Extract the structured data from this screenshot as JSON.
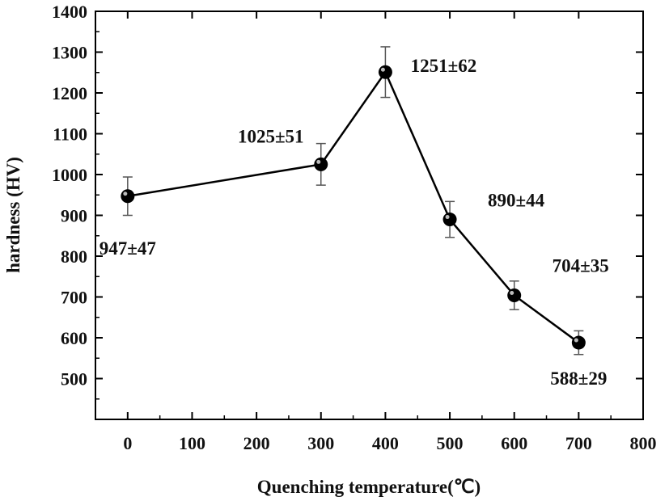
{
  "chart_data": {
    "type": "line",
    "xlabel": "Quenching temperature(℃)",
    "ylabel": "hardness (HV)",
    "xlim": [
      -50,
      800
    ],
    "ylim": [
      400,
      1400
    ],
    "xticks": [
      0,
      100,
      200,
      300,
      400,
      500,
      600,
      700,
      800
    ],
    "yticks": [
      500,
      600,
      700,
      800,
      900,
      1000,
      1100,
      1200,
      1300,
      1400
    ],
    "grid": false,
    "series": [
      {
        "x": [
          0,
          300,
          400,
          500,
          600,
          700
        ],
        "y": [
          947,
          1025,
          1251,
          890,
          704,
          588
        ],
        "error": [
          47,
          51,
          62,
          44,
          35,
          29
        ],
        "labels": [
          "947±47",
          "1025±51",
          "1251±62",
          "890±44",
          "704±35",
          "588±29"
        ]
      }
    ]
  },
  "colors": {
    "line": "#000000",
    "marker": "#000000",
    "error_bar": "#555555"
  }
}
